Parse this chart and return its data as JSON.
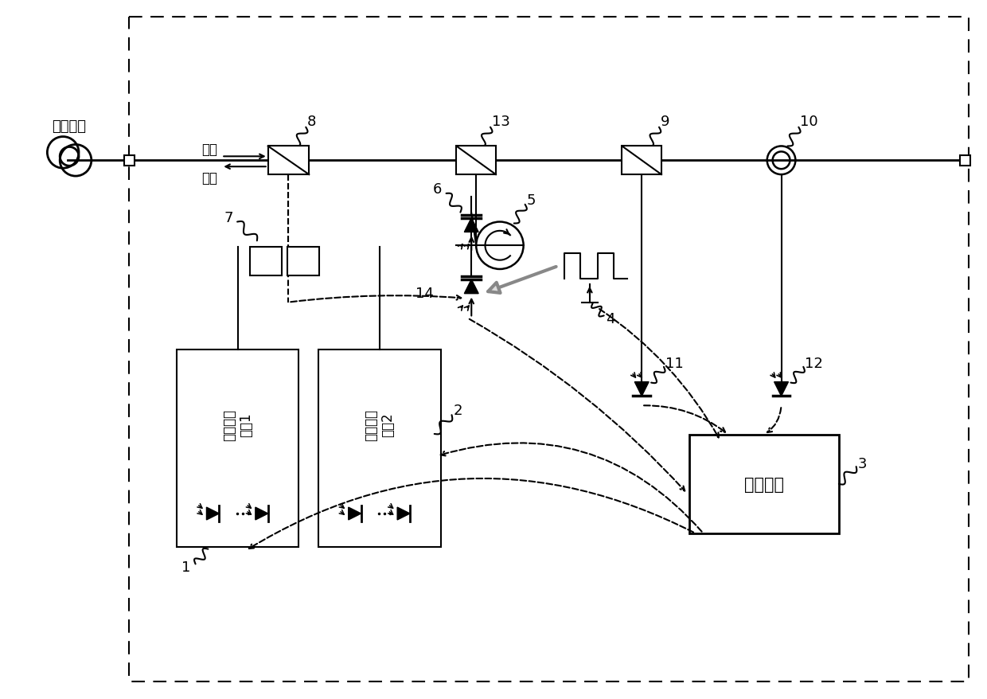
{
  "bg_color": "#ffffff",
  "fiber_label": "传输光纤",
  "signal_label": "信号",
  "pump_label": "泵浦",
  "pump_module1_label": "泵浦光源\n模块1",
  "pump_module2_label": "泵浦光源\n模块2",
  "control_unit_label": "控制单元"
}
